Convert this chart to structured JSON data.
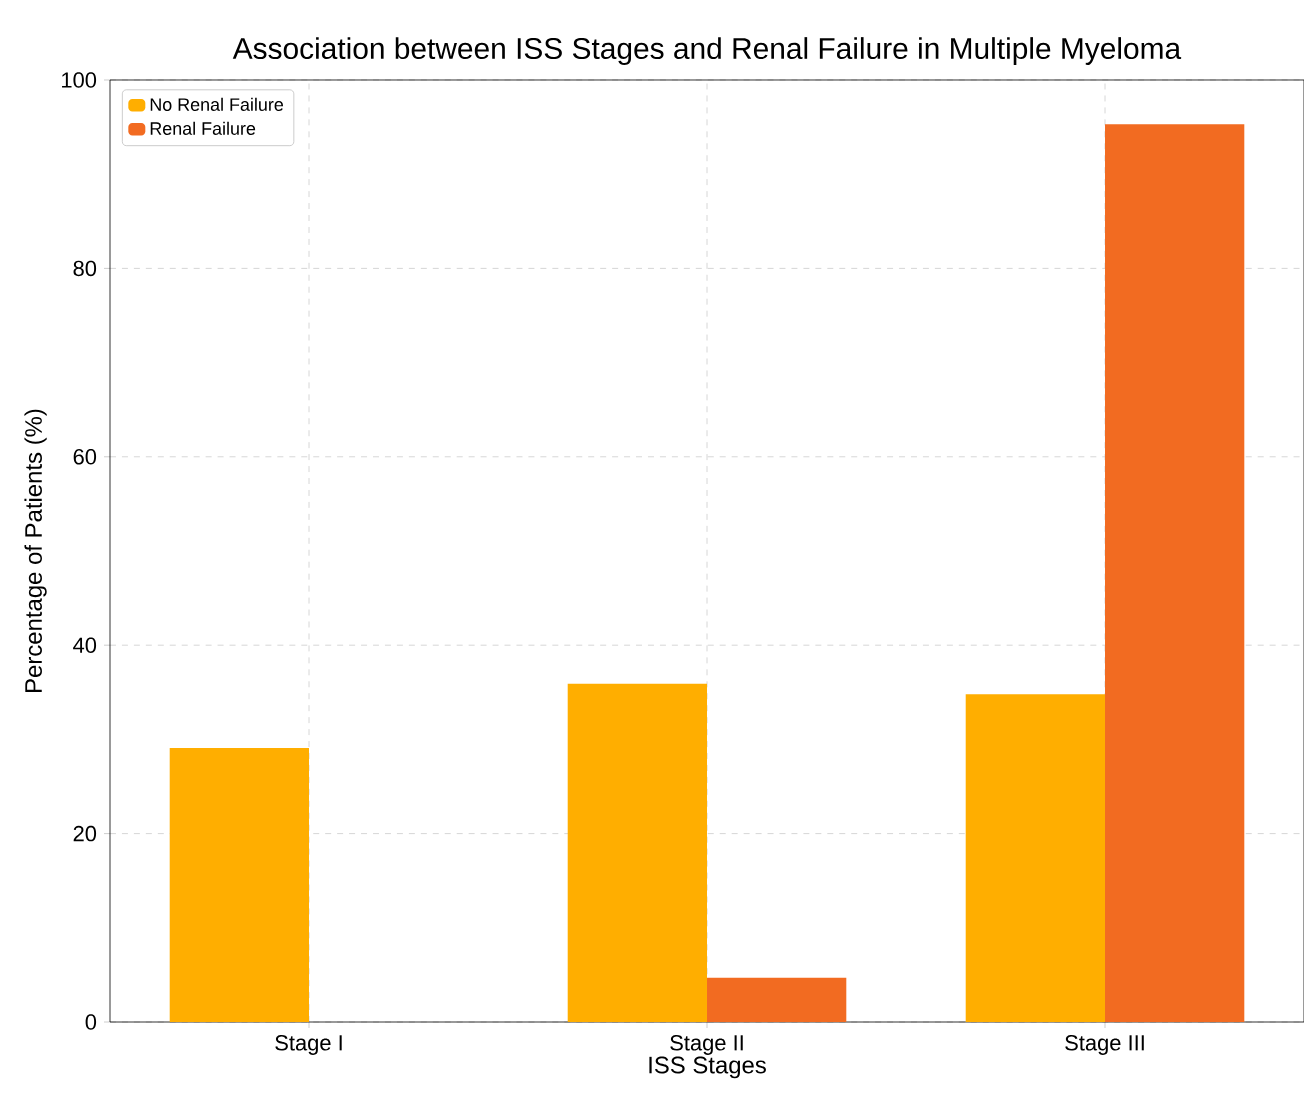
{
  "chart_data": {
    "type": "bar",
    "title": "Association between ISS Stages and Renal Failure in Multiple Myeloma",
    "xlabel": "ISS Stages",
    "ylabel": "Percentage of Patients (%)",
    "categories": [
      "Stage I",
      "Stage II",
      "Stage III"
    ],
    "series": [
      {
        "name": "No Renal Failure",
        "color": "#ffae00",
        "values": [
          29.1,
          35.9,
          34.8
        ]
      },
      {
        "name": "Renal Failure",
        "color": "#f26b21",
        "values": [
          0,
          4.7,
          95.3
        ]
      }
    ],
    "ylim": [
      0,
      100
    ],
    "yticks": [
      0,
      20,
      40,
      60,
      80,
      100
    ],
    "grid": true,
    "legend": "top left"
  }
}
